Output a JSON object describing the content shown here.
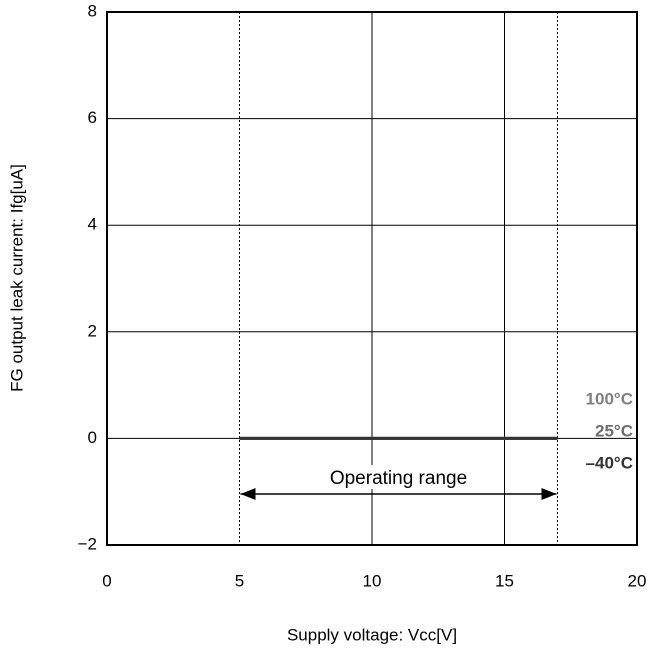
{
  "chart_data": {
    "type": "line",
    "x_label": "Supply voltage: Vcc[V]",
    "y_label": "FG output leak current: Ifg[uA]",
    "x": [
      5,
      17
    ],
    "series": [
      {
        "name": "100°C",
        "color": "#808080",
        "values": [
          0,
          0
        ]
      },
      {
        "name": "25°C",
        "color": "#6e6e6e",
        "values": [
          0,
          0
        ]
      },
      {
        "name": "–40°C",
        "color": "#333333",
        "values": [
          0,
          0
        ]
      }
    ],
    "annotation": {
      "text": "Operating range",
      "x": [
        5,
        17
      ]
    },
    "xlim": [
      0,
      20
    ],
    "xticks": [
      0,
      5,
      10,
      15,
      20
    ],
    "ylim": [
      -2,
      8
    ],
    "yticks": [
      {
        "value": -2,
        "label": "−2"
      },
      0,
      2,
      4,
      6,
      8
    ],
    "grid": true
  }
}
